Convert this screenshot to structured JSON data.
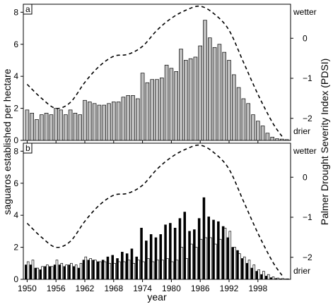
{
  "chart_data": [
    {
      "type": "bar",
      "panel_label": "a",
      "ylabel": "saguaros established per hectare",
      "y2label": "Palmer Drought Severity Index (PDSI)",
      "ylim": [
        0,
        8.5
      ],
      "yticks": [
        0,
        2,
        4,
        6,
        8
      ],
      "y2ticks": [
        {
          "value": 0,
          "label": "0"
        },
        {
          "value": -1,
          "label": "−1"
        },
        {
          "value": -2,
          "label": "−2"
        }
      ],
      "y2_words": {
        "wetter": "wetter",
        "drier": "drier"
      },
      "y2lim": [
        -2.55,
        0.85
      ],
      "x_start": 1950,
      "series": [
        {
          "fill": "#bfbfbf",
          "values": [
            1.9,
            1.7,
            1.3,
            1.6,
            1.7,
            1.6,
            2.0,
            1.9,
            1.6,
            1.9,
            1.7,
            1.6,
            2.5,
            2.4,
            2.3,
            2.2,
            2.2,
            2.3,
            2.4,
            2.4,
            2.7,
            2.8,
            2.8,
            2.6,
            4.2,
            3.6,
            3.8,
            3.8,
            3.9,
            4.7,
            4.5,
            4.3,
            5.7,
            5.0,
            5.1,
            5.2,
            5.9,
            7.5,
            6.4,
            5.8,
            6.0,
            5.5,
            5.0,
            4.1,
            3.3,
            2.6,
            2.3,
            1.6,
            1.2,
            0.9,
            0.45,
            0.2,
            0.1,
            0.08,
            0.05
          ]
        }
      ],
      "pdsi": {
        "style": "dashed",
        "points": [
          [
            1950,
            -1.15
          ],
          [
            1953,
            -1.5
          ],
          [
            1956,
            -1.75
          ],
          [
            1959,
            -1.6
          ],
          [
            1962,
            -1.1
          ],
          [
            1965,
            -0.7
          ],
          [
            1968,
            -0.45
          ],
          [
            1971,
            -0.4
          ],
          [
            1974,
            -0.2
          ],
          [
            1977,
            0.2
          ],
          [
            1980,
            0.5
          ],
          [
            1983,
            0.7
          ],
          [
            1986,
            0.8
          ],
          [
            1989,
            0.6
          ],
          [
            1992,
            0.2
          ],
          [
            1995,
            -0.6
          ],
          [
            1998,
            -1.4
          ],
          [
            2001,
            -2.1
          ],
          [
            2003,
            -2.45
          ]
        ]
      }
    },
    {
      "type": "bar",
      "panel_label": "b",
      "ylim": [
        0,
        8.5
      ],
      "yticks": [
        0,
        2,
        4,
        6,
        8
      ],
      "y2ticks": [
        {
          "value": 0,
          "label": "0"
        },
        {
          "value": -1,
          "label": "−1"
        },
        {
          "value": -2,
          "label": "−2"
        }
      ],
      "y2_words": {
        "wetter": "wetter",
        "drier": "drier"
      },
      "y2lim": [
        -2.55,
        0.85
      ],
      "x_start": 1950,
      "xlabel": "year",
      "xticks": [
        1950,
        1956,
        1962,
        1968,
        1974,
        1980,
        1986,
        1992,
        1998
      ],
      "series": [
        {
          "fill": "#000000",
          "values": [
            0.9,
            0.9,
            0.7,
            0.6,
            0.8,
            0.8,
            0.9,
            0.9,
            0.8,
            0.9,
            0.8,
            0.7,
            1.2,
            1.2,
            1.2,
            1.1,
            1.2,
            1.4,
            1.5,
            1.3,
            1.7,
            1.6,
            1.9,
            1.4,
            3.2,
            2.4,
            2.8,
            2.6,
            2.8,
            3.4,
            3.5,
            3.2,
            3.8,
            4.2,
            3.0,
            3.1,
            3.8,
            5.1,
            3.9,
            3.7,
            3.6,
            3.3,
            2.6,
            2.0,
            1.8,
            1.3,
            1.0,
            0.7,
            0.5,
            0.3,
            0.2,
            0.1,
            0.05,
            0.03,
            0.02
          ]
        },
        {
          "fill": "#ffffff",
          "values": [
            1.1,
            1.2,
            0.7,
            0.8,
            0.9,
            0.8,
            1.2,
            1.0,
            0.9,
            1.0,
            0.9,
            1.0,
            1.4,
            1.3,
            1.2,
            1.1,
            1.1,
            1.0,
            1.0,
            1.1,
            1.1,
            1.2,
            1.0,
            1.2,
            1.1,
            1.3,
            1.1,
            1.2,
            1.2,
            1.3,
            1.1,
            1.2,
            2.0,
            1.3,
            2.2,
            2.0,
            2.5,
            2.6,
            2.6,
            2.2,
            2.5,
            3.2,
            3.0,
            2.0,
            1.6,
            1.4,
            1.2,
            0.9,
            0.6,
            0.5,
            0.3,
            0.15,
            0.08,
            0.05,
            0.03
          ]
        }
      ],
      "pdsi": {
        "style": "dashed",
        "points": [
          [
            1950,
            -1.15
          ],
          [
            1953,
            -1.5
          ],
          [
            1956,
            -1.75
          ],
          [
            1959,
            -1.6
          ],
          [
            1962,
            -1.1
          ],
          [
            1965,
            -0.7
          ],
          [
            1968,
            -0.45
          ],
          [
            1971,
            -0.4
          ],
          [
            1974,
            -0.2
          ],
          [
            1977,
            0.2
          ],
          [
            1980,
            0.5
          ],
          [
            1983,
            0.7
          ],
          [
            1986,
            0.8
          ],
          [
            1989,
            0.6
          ],
          [
            1992,
            0.2
          ],
          [
            1995,
            -0.6
          ],
          [
            1998,
            -1.4
          ],
          [
            2001,
            -2.1
          ],
          [
            2003,
            -2.45
          ]
        ]
      }
    }
  ]
}
